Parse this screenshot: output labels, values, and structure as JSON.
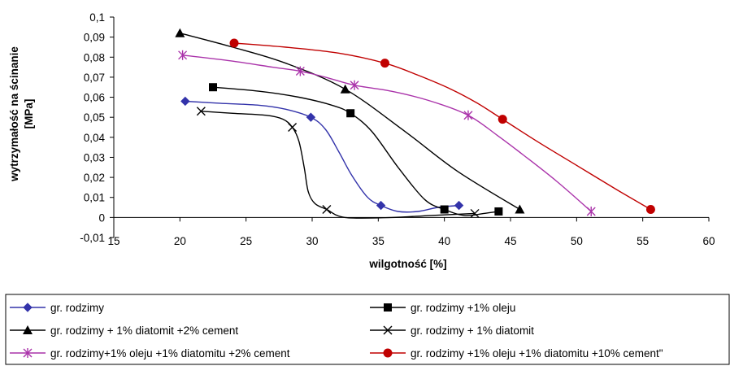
{
  "chart_data": {
    "type": "line",
    "title": "",
    "xlabel": "wilgotność [%]",
    "ylabel_line1": "wytrzymałość na ścinanie",
    "ylabel_line2": "[MPa]",
    "xlim": [
      15,
      60
    ],
    "ylim": [
      -0.01,
      0.1
    ],
    "x_ticks": [
      15,
      20,
      25,
      30,
      35,
      40,
      45,
      50,
      55,
      60
    ],
    "y_ticks": [
      -0.01,
      0,
      0.01,
      0.02,
      0.03,
      0.04,
      0.05,
      0.06,
      0.07,
      0.08,
      0.09,
      0.1
    ],
    "x_tick_labels": [
      "15",
      "20",
      "25",
      "30",
      "35",
      "40",
      "45",
      "50",
      "55",
      "60"
    ],
    "y_tick_labels": [
      "-0,01",
      "0",
      "0,01",
      "0,02",
      "0,03",
      "0,04",
      "0,05",
      "0,06",
      "0,07",
      "0,08",
      "0,09",
      "0,1"
    ],
    "grid": false,
    "legend_position": "bottom",
    "series": [
      {
        "name": "gr. rodzimy",
        "color": "#3333aa",
        "marker": "diamond",
        "points": [
          [
            20.4,
            0.058
          ],
          [
            29.9,
            0.05
          ],
          [
            35.2,
            0.006
          ],
          [
            41.1,
            0.006
          ]
        ],
        "curve": [
          [
            20.4,
            0.058
          ],
          [
            23.0,
            0.057
          ],
          [
            26.0,
            0.056
          ],
          [
            28.0,
            0.054
          ],
          [
            29.9,
            0.05
          ],
          [
            31.0,
            0.044
          ],
          [
            32.0,
            0.033
          ],
          [
            33.0,
            0.021
          ],
          [
            34.2,
            0.01
          ],
          [
            35.2,
            0.006
          ],
          [
            36.5,
            0.003
          ],
          [
            38.0,
            0.003
          ],
          [
            39.5,
            0.005
          ],
          [
            41.1,
            0.006
          ]
        ]
      },
      {
        "name": "gr. rodzimy +1% oleju",
        "color": "#000000",
        "marker": "square",
        "points": [
          [
            22.5,
            0.065
          ],
          [
            32.9,
            0.052
          ],
          [
            40.0,
            0.004
          ],
          [
            44.1,
            0.003
          ]
        ],
        "curve": [
          [
            22.5,
            0.065
          ],
          [
            26.0,
            0.063
          ],
          [
            29.0,
            0.06
          ],
          [
            31.5,
            0.056
          ],
          [
            32.9,
            0.052
          ],
          [
            34.5,
            0.043
          ],
          [
            36.5,
            0.025
          ],
          [
            38.5,
            0.009
          ],
          [
            40.0,
            0.004
          ],
          [
            41.5,
            0.001
          ],
          [
            43.0,
            0.002
          ],
          [
            44.1,
            0.003
          ]
        ]
      },
      {
        "name": "gr. rodzimy + 1% diatomit +2% cement",
        "color": "#000000",
        "marker": "triangle",
        "points": [
          [
            20.0,
            0.092
          ],
          [
            32.5,
            0.064
          ],
          [
            45.7,
            0.004
          ]
        ],
        "curve": [
          [
            20.0,
            0.092
          ],
          [
            24.0,
            0.085
          ],
          [
            28.0,
            0.077
          ],
          [
            32.5,
            0.064
          ],
          [
            37.0,
            0.043
          ],
          [
            41.0,
            0.023
          ],
          [
            45.7,
            0.004
          ]
        ]
      },
      {
        "name": "gr. rodzimy + 1% diatomit",
        "color": "#000000",
        "marker": "x",
        "points": [
          [
            21.6,
            0.053
          ],
          [
            28.5,
            0.045
          ],
          [
            31.1,
            0.004
          ],
          [
            42.3,
            0.002
          ]
        ],
        "curve": [
          [
            21.6,
            0.053
          ],
          [
            24.0,
            0.052
          ],
          [
            26.5,
            0.051
          ],
          [
            27.8,
            0.049
          ],
          [
            28.5,
            0.045
          ],
          [
            29.0,
            0.038
          ],
          [
            29.4,
            0.025
          ],
          [
            29.7,
            0.013
          ],
          [
            30.2,
            0.007
          ],
          [
            31.1,
            0.004
          ],
          [
            32.5,
            0.0
          ],
          [
            36.0,
            0.0
          ],
          [
            39.0,
            0.001
          ],
          [
            42.3,
            0.002
          ]
        ]
      },
      {
        "name": "gr. rodzimy+1% oleju +1% diatomitu +2% cement",
        "color": "#aa33aa",
        "marker": "asterisk",
        "points": [
          [
            20.2,
            0.081
          ],
          [
            29.1,
            0.073
          ],
          [
            33.2,
            0.066
          ],
          [
            41.8,
            0.051
          ],
          [
            51.1,
            0.003
          ]
        ],
        "curve": [
          [
            20.2,
            0.081
          ],
          [
            24.0,
            0.078
          ],
          [
            27.0,
            0.075
          ],
          [
            29.1,
            0.073
          ],
          [
            31.0,
            0.07
          ],
          [
            33.2,
            0.066
          ],
          [
            36.0,
            0.063
          ],
          [
            39.0,
            0.058
          ],
          [
            41.8,
            0.051
          ],
          [
            44.0,
            0.041
          ],
          [
            46.0,
            0.031
          ],
          [
            48.5,
            0.018
          ],
          [
            51.1,
            0.003
          ]
        ]
      },
      {
        "name": "gr. rodzimy +1% oleju +1% diatomitu +10% cement\"",
        "color": "#c00000",
        "marker": "circle",
        "points": [
          [
            24.1,
            0.087
          ],
          [
            35.5,
            0.077
          ],
          [
            44.4,
            0.049
          ],
          [
            55.6,
            0.004
          ]
        ],
        "curve": [
          [
            24.1,
            0.087
          ],
          [
            28.0,
            0.085
          ],
          [
            32.0,
            0.082
          ],
          [
            35.5,
            0.077
          ],
          [
            38.0,
            0.071
          ],
          [
            40.5,
            0.064
          ],
          [
            42.5,
            0.057
          ],
          [
            44.4,
            0.049
          ],
          [
            47.0,
            0.038
          ],
          [
            50.0,
            0.026
          ],
          [
            53.0,
            0.014
          ],
          [
            55.6,
            0.004
          ]
        ]
      }
    ]
  }
}
